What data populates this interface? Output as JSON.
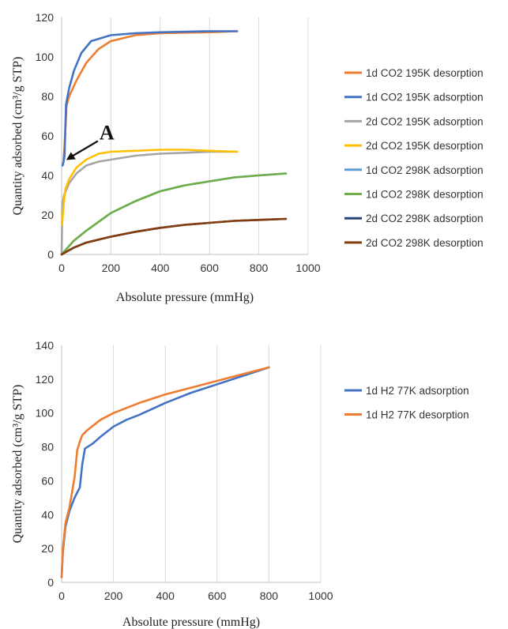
{
  "chart_data": [
    {
      "type": "line",
      "title": "",
      "xlabel": "Absolute pressure (mmHg)",
      "ylabel": "Quantity adsorbed (cm³/g STP)",
      "xlim": [
        0,
        1000
      ],
      "ylim": [
        0,
        120
      ],
      "x_ticks": [
        "0",
        "200",
        "400",
        "600",
        "800",
        "1000"
      ],
      "y_ticks": [
        "0",
        "20",
        "40",
        "60",
        "80",
        "100",
        "120"
      ],
      "grid": "vertical",
      "legend_position": "right",
      "annotations": [
        {
          "text": "A",
          "points_to": [
            6,
            47
          ]
        }
      ],
      "series": [
        {
          "name": "1d CO2 195K desorption",
          "color": "#ED7D31",
          "points": [
            [
              712,
              113
            ],
            [
              600,
              112.5
            ],
            [
              400,
              112
            ],
            [
              300,
              111
            ],
            [
              200,
              108
            ],
            [
              150,
              104
            ],
            [
              100,
              97
            ],
            [
              60,
              88
            ],
            [
              30,
              80
            ],
            [
              20,
              75
            ],
            [
              12,
              55
            ],
            [
              8,
              48
            ]
          ]
        },
        {
          "name": "1d CO2 195K adsorption",
          "color": "#4472C4",
          "points": [
            [
              4,
              45
            ],
            [
              8,
              47
            ],
            [
              12,
              50
            ],
            [
              18,
              76
            ],
            [
              30,
              84
            ],
            [
              50,
              93
            ],
            [
              80,
              102
            ],
            [
              120,
              108
            ],
            [
              200,
              111
            ],
            [
              300,
              112
            ],
            [
              400,
              112.5
            ],
            [
              600,
              113
            ],
            [
              712,
              113
            ]
          ]
        },
        {
          "name": "2d CO2 195K adsorption",
          "color": "#A5A5A5",
          "points": [
            [
              0,
              0
            ],
            [
              3,
              25
            ],
            [
              10,
              30
            ],
            [
              30,
              36
            ],
            [
              60,
              41
            ],
            [
              100,
              45
            ],
            [
              150,
              47
            ],
            [
              200,
              48
            ],
            [
              300,
              50
            ],
            [
              400,
              51
            ],
            [
              500,
              51.5
            ],
            [
              600,
              52
            ],
            [
              712,
              52
            ]
          ]
        },
        {
          "name": "2d CO2 195K desorption",
          "color": "#FFC000",
          "points": [
            [
              712,
              52
            ],
            [
              600,
              52.5
            ],
            [
              500,
              53
            ],
            [
              400,
              53
            ],
            [
              300,
              52.5
            ],
            [
              200,
              52
            ],
            [
              150,
              51
            ],
            [
              100,
              48
            ],
            [
              60,
              44
            ],
            [
              30,
              38
            ],
            [
              15,
              33
            ],
            [
              8,
              25
            ],
            [
              2,
              15
            ]
          ]
        },
        {
          "name": "1d CO2 298K adsorption",
          "color": "#5B9BD5",
          "points": [
            [
              0,
              0
            ],
            [
              50,
              7
            ],
            [
              100,
              12
            ],
            [
              200,
              21
            ],
            [
              300,
              27
            ],
            [
              400,
              32
            ],
            [
              500,
              35
            ],
            [
              600,
              37
            ],
            [
              700,
              39
            ],
            [
              800,
              40
            ],
            [
              910,
              41
            ]
          ]
        },
        {
          "name": "1d CO2 298K desorption",
          "color": "#70AD47",
          "points": [
            [
              910,
              41
            ],
            [
              800,
              40
            ],
            [
              700,
              39
            ],
            [
              600,
              37
            ],
            [
              500,
              35
            ],
            [
              400,
              32
            ],
            [
              300,
              27
            ],
            [
              200,
              21
            ],
            [
              100,
              12
            ],
            [
              50,
              7
            ],
            [
              0,
              0
            ]
          ]
        },
        {
          "name": "2d CO2 298K adsorption",
          "color": "#264478",
          "points": [
            [
              0,
              0
            ],
            [
              50,
              3.5
            ],
            [
              100,
              6
            ],
            [
              200,
              9
            ],
            [
              300,
              11.5
            ],
            [
              400,
              13.5
            ],
            [
              500,
              15
            ],
            [
              600,
              16
            ],
            [
              700,
              17
            ],
            [
              800,
              17.5
            ],
            [
              910,
              18
            ]
          ]
        },
        {
          "name": "2d CO2 298K desorption",
          "color": "#843C0C",
          "points": [
            [
              910,
              18
            ],
            [
              800,
              17.5
            ],
            [
              700,
              17
            ],
            [
              600,
              16
            ],
            [
              500,
              15
            ],
            [
              400,
              13.5
            ],
            [
              300,
              11.5
            ],
            [
              200,
              9
            ],
            [
              100,
              6
            ],
            [
              50,
              3.5
            ],
            [
              0,
              0
            ]
          ]
        }
      ]
    },
    {
      "type": "line",
      "title": "",
      "xlabel": "Absolute pressure (mmHg)",
      "ylabel": "Quantity adsorbed (cm³/g STP)",
      "xlim": [
        0,
        1000
      ],
      "ylim": [
        0,
        140
      ],
      "x_ticks": [
        "0",
        "200",
        "400",
        "600",
        "800",
        "1000"
      ],
      "y_ticks": [
        "0",
        "20",
        "40",
        "60",
        "80",
        "100",
        "120",
        "140"
      ],
      "grid": "vertical",
      "legend_position": "right",
      "series": [
        {
          "name": "1d H2 77K adsorption",
          "color": "#4472C4",
          "points": [
            [
              0,
              3
            ],
            [
              5,
              18
            ],
            [
              15,
              33
            ],
            [
              30,
              42
            ],
            [
              50,
              50
            ],
            [
              70,
              56
            ],
            [
              80,
              70
            ],
            [
              90,
              79
            ],
            [
              120,
              82
            ],
            [
              150,
              86
            ],
            [
              200,
              92
            ],
            [
              250,
              96
            ],
            [
              300,
              99
            ],
            [
              400,
              106
            ],
            [
              500,
              112
            ],
            [
              600,
              117
            ],
            [
              700,
              122
            ],
            [
              800,
              127
            ]
          ]
        },
        {
          "name": "1d H2 77K desorption",
          "color": "#ED7D31",
          "points": [
            [
              800,
              127
            ],
            [
              700,
              123
            ],
            [
              600,
              119
            ],
            [
              500,
              115
            ],
            [
              400,
              111
            ],
            [
              300,
              106
            ],
            [
              200,
              100
            ],
            [
              150,
              96
            ],
            [
              100,
              90
            ],
            [
              80,
              87
            ],
            [
              70,
              83
            ],
            [
              60,
              78
            ],
            [
              50,
              62
            ],
            [
              30,
              44
            ],
            [
              15,
              35
            ],
            [
              5,
              20
            ],
            [
              0,
              3
            ]
          ]
        }
      ]
    }
  ]
}
